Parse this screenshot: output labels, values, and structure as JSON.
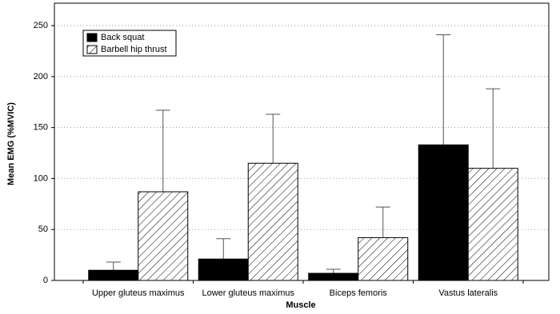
{
  "chart_data": {
    "type": "bar",
    "x_label": "Muscle",
    "y_label": "Mean EMG (%MVIC)",
    "categories": [
      "Upper gluteus maximus",
      "Lower gluteus maximus",
      "Biceps femoris",
      "Vastus lateralis"
    ],
    "series": [
      {
        "name": "Back squat",
        "color": "#000000",
        "hatch": false,
        "values": [
          10,
          21,
          7,
          133
        ],
        "errors": [
          8,
          20,
          4,
          108
        ]
      },
      {
        "name": "Barbell hip thrust",
        "color": "#ffffff",
        "hatch": true,
        "values": [
          87,
          115,
          42,
          110
        ],
        "errors": [
          80,
          48,
          30,
          78
        ]
      }
    ],
    "ylim": [
      0,
      272
    ],
    "yticks": [
      0,
      50,
      100,
      150,
      200,
      250
    ],
    "grid": true,
    "legend": "upper left"
  }
}
